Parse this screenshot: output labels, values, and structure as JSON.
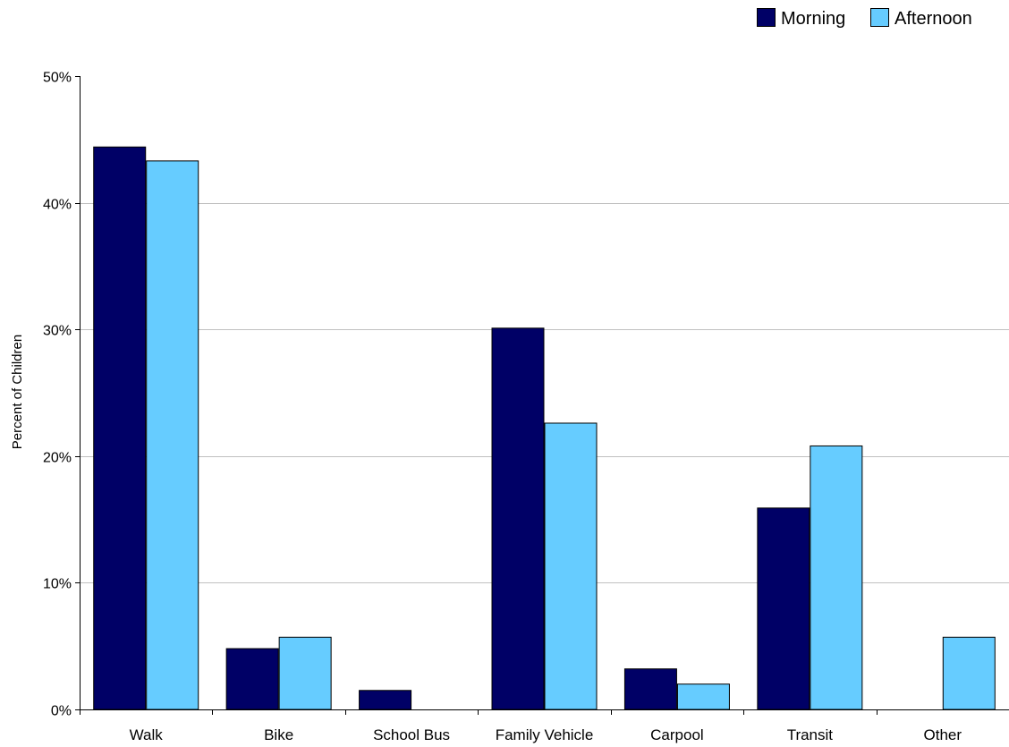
{
  "chart_data": {
    "type": "bar",
    "title": "",
    "xlabel": "",
    "ylabel": "Percent of Children",
    "categories": [
      "Walk",
      "Bike",
      "School Bus",
      "Family Vehicle",
      "Carpool",
      "Transit",
      "Other"
    ],
    "series": [
      {
        "name": "Morning",
        "color": "#000066",
        "values": [
          44.4,
          4.8,
          1.5,
          30.1,
          3.2,
          15.9,
          0
        ]
      },
      {
        "name": "Afternoon",
        "color": "#66ccff",
        "values": [
          43.3,
          5.7,
          0,
          22.6,
          2.0,
          20.8,
          5.7
        ]
      }
    ],
    "ylim": [
      0,
      50
    ],
    "yticks": [
      0,
      10,
      20,
      30,
      40,
      50
    ],
    "ytick_labels": [
      "0%",
      "10%",
      "20%",
      "30%",
      "40%",
      "50%"
    ],
    "grid": true,
    "gridline_color": "#c0c0c0",
    "legend_position": "top-right"
  }
}
